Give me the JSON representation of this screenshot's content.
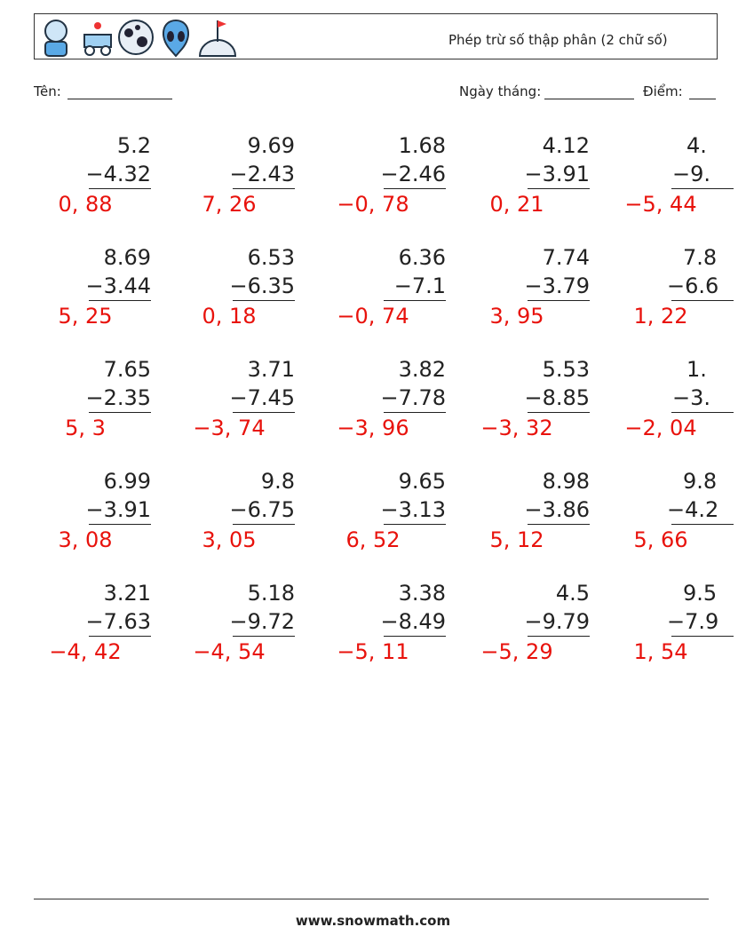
{
  "header": {
    "title": "Phép trừ số thập phân (2 chữ số)"
  },
  "fields": {
    "name": "Tên:",
    "date": "Ngày tháng:",
    "score": "Điểm:"
  },
  "problems": [
    [
      {
        "top": "5.2",
        "bottom": "−4.32",
        "answer": "0, 88"
      },
      {
        "top": "9.69",
        "bottom": "−2.43",
        "answer": "7, 26"
      },
      {
        "top": "1.68",
        "bottom": "−2.46",
        "answer": "−0, 78"
      },
      {
        "top": "4.12",
        "bottom": "−3.91",
        "answer": "0, 21"
      },
      {
        "top": "4.",
        "bottom": "−9.",
        "answer": "−5, 44"
      }
    ],
    [
      {
        "top": "8.69",
        "bottom": "−3.44",
        "answer": "5, 25"
      },
      {
        "top": "6.53",
        "bottom": "−6.35",
        "answer": "0, 18"
      },
      {
        "top": "6.36",
        "bottom": "−7.1",
        "answer": "−0, 74"
      },
      {
        "top": "7.74",
        "bottom": "−3.79",
        "answer": "3, 95"
      },
      {
        "top": "7.8",
        "bottom": "−6.6",
        "answer": "1, 22"
      }
    ],
    [
      {
        "top": "7.65",
        "bottom": "−2.35",
        "answer": "5, 3"
      },
      {
        "top": "3.71",
        "bottom": "−7.45",
        "answer": "−3, 74"
      },
      {
        "top": "3.82",
        "bottom": "−7.78",
        "answer": "−3, 96"
      },
      {
        "top": "5.53",
        "bottom": "−8.85",
        "answer": "−3, 32"
      },
      {
        "top": "1.",
        "bottom": "−3.",
        "answer": "−2, 04"
      }
    ],
    [
      {
        "top": "6.99",
        "bottom": "−3.91",
        "answer": "3, 08"
      },
      {
        "top": "9.8",
        "bottom": "−6.75",
        "answer": "3, 05"
      },
      {
        "top": "9.65",
        "bottom": "−3.13",
        "answer": "6, 52"
      },
      {
        "top": "8.98",
        "bottom": "−3.86",
        "answer": "5, 12"
      },
      {
        "top": "9.8",
        "bottom": "−4.2",
        "answer": "5, 66"
      }
    ],
    [
      {
        "top": "3.21",
        "bottom": "−7.63",
        "answer": "−4, 42"
      },
      {
        "top": "5.18",
        "bottom": "−9.72",
        "answer": "−4, 54"
      },
      {
        "top": "3.38",
        "bottom": "−8.49",
        "answer": "−5, 11"
      },
      {
        "top": "4.5",
        "bottom": "−9.79",
        "answer": "−5, 29"
      },
      {
        "top": "9.5",
        "bottom": "−7.9",
        "answer": "1, 54"
      }
    ]
  ],
  "footer": {
    "site": "www.snowmath.com"
  }
}
